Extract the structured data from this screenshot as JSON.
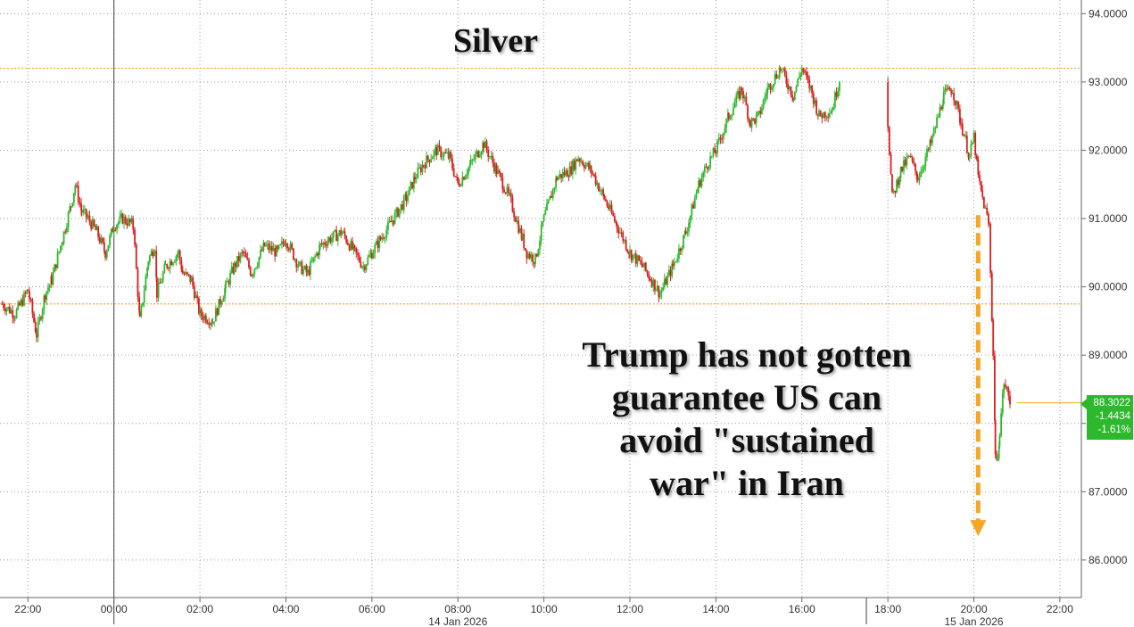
{
  "chart_data": {
    "type": "candlestick",
    "title": "Silver",
    "annotation": [
      "Trump has not gotten",
      "guarantee US can",
      "avoid \"sustained",
      "war\" in Iran"
    ],
    "y_ticks": [
      "86.0000",
      "87.0000",
      "88.0000",
      "89.0000",
      "90.0000",
      "91.0000",
      "92.0000",
      "93.0000",
      "94.0000"
    ],
    "ylim": [
      85.45,
      94.2
    ],
    "x_ticks": [
      "22:00",
      "00:00",
      "02:00",
      "04:00",
      "06:00",
      "08:00",
      "10:00",
      "12:00",
      "14:00",
      "16:00",
      "18:00",
      "20:00",
      "22:00"
    ],
    "x_tick_hours": [
      -2,
      0,
      2,
      4,
      6,
      8,
      10,
      12,
      14,
      16,
      18,
      20,
      22
    ],
    "xlim_hours": [
      -2.65,
      22.5
    ],
    "date_labels": [
      {
        "text": "14 Jan 2026",
        "at_hour": 8
      },
      {
        "text": "15 Jan 2026",
        "at_hour": 20
      }
    ],
    "day_separator_hour": 0,
    "session_gap_hours": [
      17,
      18
    ],
    "reference_lines": [
      93.2,
      89.75
    ],
    "current_price": {
      "value": "88.3022",
      "change": "-1.4434",
      "change_pct": "-1.61%"
    },
    "current_value": 88.3022,
    "down_arrow": {
      "at_hour": 20.1,
      "from": 91.05,
      "to": 86.35
    },
    "series": [
      {
        "x": [
          -2.6,
          -2.3,
          -2.0,
          -1.8,
          -1.6,
          -1.45,
          -1.2,
          -1.0,
          -0.9,
          -0.75,
          -0.6,
          -0.4,
          -0.2,
          0.0,
          0.2,
          0.45,
          0.6,
          0.8,
          0.95,
          1.0,
          1.2,
          1.5,
          1.6,
          1.8,
          2.0,
          2.3,
          2.6,
          2.8,
          3.0,
          3.2,
          3.5,
          3.8,
          4.0,
          4.3,
          4.5,
          4.8,
          5.0,
          5.3,
          5.6,
          5.8,
          6.0,
          6.2,
          6.5,
          6.8,
          7.0,
          7.2,
          7.5,
          7.8,
          8.0,
          8.3,
          8.6,
          8.9,
          9.2,
          9.5,
          9.6,
          9.8,
          10.0,
          10.3,
          10.6,
          10.8,
          11.1,
          11.4,
          11.7,
          12.0,
          12.3,
          12.6,
          12.7,
          13.0,
          13.3,
          13.6,
          13.8,
          14.0,
          14.3,
          14.6,
          14.8,
          15.0,
          15.2,
          15.5,
          15.8,
          16.0,
          16.2,
          16.4,
          16.7,
          16.9,
          18.0,
          18.1,
          18.3,
          18.5,
          18.7,
          19.0,
          19.3,
          19.5,
          19.7,
          19.9,
          20.0,
          20.1,
          20.2,
          20.35,
          20.45,
          20.5,
          20.55,
          20.6,
          20.7,
          20.85
        ],
        "y": [
          89.75,
          89.6,
          89.95,
          89.3,
          89.9,
          90.1,
          90.7,
          91.2,
          91.5,
          91.1,
          91.0,
          90.8,
          90.5,
          90.9,
          91.0,
          90.9,
          89.5,
          90.4,
          90.6,
          89.9,
          90.3,
          90.5,
          90.2,
          90.1,
          89.6,
          89.5,
          90.0,
          90.3,
          90.5,
          90.2,
          90.6,
          90.5,
          90.7,
          90.3,
          90.2,
          90.6,
          90.7,
          90.8,
          90.5,
          90.3,
          90.5,
          90.7,
          91.0,
          91.3,
          91.6,
          91.8,
          92.0,
          91.9,
          91.5,
          91.8,
          92.1,
          91.7,
          91.3,
          90.7,
          90.5,
          90.4,
          91.0,
          91.6,
          91.7,
          91.9,
          91.7,
          91.3,
          90.9,
          90.5,
          90.3,
          90.0,
          89.9,
          90.3,
          90.8,
          91.5,
          91.8,
          92.0,
          92.5,
          92.9,
          92.4,
          92.5,
          92.9,
          93.2,
          92.8,
          93.2,
          92.9,
          92.5,
          92.6,
          93.1,
          92.4,
          91.3,
          91.7,
          91.9,
          91.6,
          92.1,
          92.8,
          92.9,
          92.4,
          91.9,
          92.2,
          91.6,
          91.3,
          90.9,
          89.0,
          87.6,
          87.4,
          87.9,
          88.6,
          88.3
        ]
      }
    ]
  }
}
